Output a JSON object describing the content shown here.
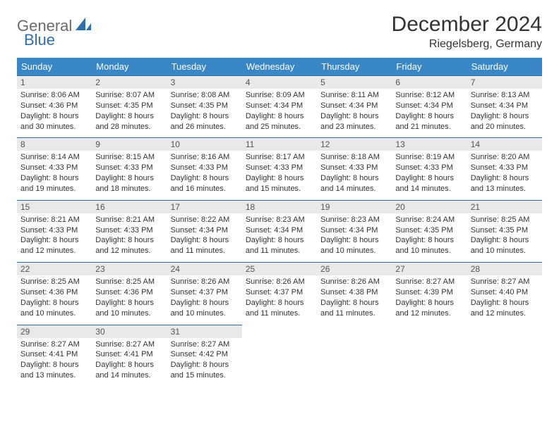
{
  "logo": {
    "text1": "General",
    "text2": "Blue"
  },
  "title": "December 2024",
  "location": "Riegelsberg, Germany",
  "colors": {
    "header_bg": "#3a87c8",
    "header_fg": "#ffffff",
    "rule": "#2f6fa8",
    "daynum_bg": "#e9e9e9",
    "logo_gray": "#6b6b6b",
    "logo_blue": "#2f6fa8"
  },
  "weekdays": [
    "Sunday",
    "Monday",
    "Tuesday",
    "Wednesday",
    "Thursday",
    "Friday",
    "Saturday"
  ],
  "weeks": [
    [
      {
        "n": "1",
        "sr": "8:06 AM",
        "ss": "4:36 PM",
        "dl": "8 hours and 30 minutes."
      },
      {
        "n": "2",
        "sr": "8:07 AM",
        "ss": "4:35 PM",
        "dl": "8 hours and 28 minutes."
      },
      {
        "n": "3",
        "sr": "8:08 AM",
        "ss": "4:35 PM",
        "dl": "8 hours and 26 minutes."
      },
      {
        "n": "4",
        "sr": "8:09 AM",
        "ss": "4:34 PM",
        "dl": "8 hours and 25 minutes."
      },
      {
        "n": "5",
        "sr": "8:11 AM",
        "ss": "4:34 PM",
        "dl": "8 hours and 23 minutes."
      },
      {
        "n": "6",
        "sr": "8:12 AM",
        "ss": "4:34 PM",
        "dl": "8 hours and 21 minutes."
      },
      {
        "n": "7",
        "sr": "8:13 AM",
        "ss": "4:34 PM",
        "dl": "8 hours and 20 minutes."
      }
    ],
    [
      {
        "n": "8",
        "sr": "8:14 AM",
        "ss": "4:33 PM",
        "dl": "8 hours and 19 minutes."
      },
      {
        "n": "9",
        "sr": "8:15 AM",
        "ss": "4:33 PM",
        "dl": "8 hours and 18 minutes."
      },
      {
        "n": "10",
        "sr": "8:16 AM",
        "ss": "4:33 PM",
        "dl": "8 hours and 16 minutes."
      },
      {
        "n": "11",
        "sr": "8:17 AM",
        "ss": "4:33 PM",
        "dl": "8 hours and 15 minutes."
      },
      {
        "n": "12",
        "sr": "8:18 AM",
        "ss": "4:33 PM",
        "dl": "8 hours and 14 minutes."
      },
      {
        "n": "13",
        "sr": "8:19 AM",
        "ss": "4:33 PM",
        "dl": "8 hours and 14 minutes."
      },
      {
        "n": "14",
        "sr": "8:20 AM",
        "ss": "4:33 PM",
        "dl": "8 hours and 13 minutes."
      }
    ],
    [
      {
        "n": "15",
        "sr": "8:21 AM",
        "ss": "4:33 PM",
        "dl": "8 hours and 12 minutes."
      },
      {
        "n": "16",
        "sr": "8:21 AM",
        "ss": "4:33 PM",
        "dl": "8 hours and 12 minutes."
      },
      {
        "n": "17",
        "sr": "8:22 AM",
        "ss": "4:34 PM",
        "dl": "8 hours and 11 minutes."
      },
      {
        "n": "18",
        "sr": "8:23 AM",
        "ss": "4:34 PM",
        "dl": "8 hours and 11 minutes."
      },
      {
        "n": "19",
        "sr": "8:23 AM",
        "ss": "4:34 PM",
        "dl": "8 hours and 10 minutes."
      },
      {
        "n": "20",
        "sr": "8:24 AM",
        "ss": "4:35 PM",
        "dl": "8 hours and 10 minutes."
      },
      {
        "n": "21",
        "sr": "8:25 AM",
        "ss": "4:35 PM",
        "dl": "8 hours and 10 minutes."
      }
    ],
    [
      {
        "n": "22",
        "sr": "8:25 AM",
        "ss": "4:36 PM",
        "dl": "8 hours and 10 minutes."
      },
      {
        "n": "23",
        "sr": "8:25 AM",
        "ss": "4:36 PM",
        "dl": "8 hours and 10 minutes."
      },
      {
        "n": "24",
        "sr": "8:26 AM",
        "ss": "4:37 PM",
        "dl": "8 hours and 10 minutes."
      },
      {
        "n": "25",
        "sr": "8:26 AM",
        "ss": "4:37 PM",
        "dl": "8 hours and 11 minutes."
      },
      {
        "n": "26",
        "sr": "8:26 AM",
        "ss": "4:38 PM",
        "dl": "8 hours and 11 minutes."
      },
      {
        "n": "27",
        "sr": "8:27 AM",
        "ss": "4:39 PM",
        "dl": "8 hours and 12 minutes."
      },
      {
        "n": "28",
        "sr": "8:27 AM",
        "ss": "4:40 PM",
        "dl": "8 hours and 12 minutes."
      }
    ],
    [
      {
        "n": "29",
        "sr": "8:27 AM",
        "ss": "4:41 PM",
        "dl": "8 hours and 13 minutes."
      },
      {
        "n": "30",
        "sr": "8:27 AM",
        "ss": "4:41 PM",
        "dl": "8 hours and 14 minutes."
      },
      {
        "n": "31",
        "sr": "8:27 AM",
        "ss": "4:42 PM",
        "dl": "8 hours and 15 minutes."
      },
      null,
      null,
      null,
      null
    ]
  ],
  "labels": {
    "sunrise": "Sunrise: ",
    "sunset": "Sunset: ",
    "daylight": "Daylight: "
  }
}
